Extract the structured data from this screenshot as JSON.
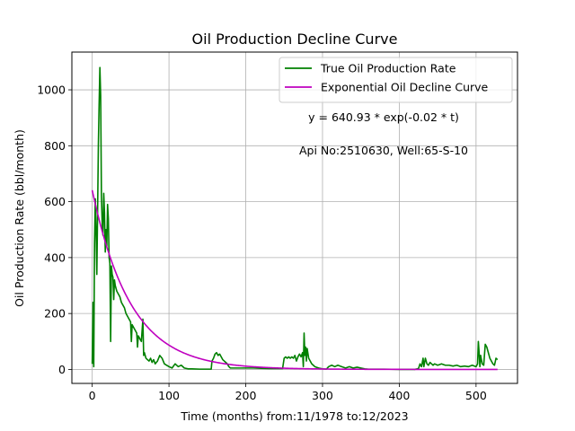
{
  "chart_data": {
    "type": "line",
    "title": "Oil Production Decline Curve",
    "xlabel": "Time (months) from:11/1978 to:12/2023",
    "ylabel": "Oil Production Rate (bbl/month)",
    "xlim": [
      -26.5,
      554
    ],
    "ylim": [
      -50,
      1135
    ],
    "xticks": [
      0,
      100,
      200,
      300,
      400,
      500
    ],
    "yticks": [
      0,
      200,
      400,
      600,
      800,
      1000
    ],
    "grid": true,
    "legend_position": "top-right",
    "annotations": [
      "y = 640.93 * exp(-0.02 * t)",
      "Api No:2510630, Well:65-S-10"
    ],
    "fit": {
      "a": 640.93,
      "b": 0.02
    },
    "series": [
      {
        "name": "True Oil Production Rate",
        "color": "#008000",
        "kind": "observed",
        "points": [
          [
            0,
            20
          ],
          [
            1,
            240
          ],
          [
            2,
            10
          ],
          [
            3,
            450
          ],
          [
            4,
            610
          ],
          [
            5,
            500
          ],
          [
            6,
            340
          ],
          [
            7,
            560
          ],
          [
            8,
            800
          ],
          [
            9,
            950
          ],
          [
            10,
            1080
          ],
          [
            11,
            980
          ],
          [
            12,
            620
          ],
          [
            13,
            520
          ],
          [
            14,
            480
          ],
          [
            15,
            630
          ],
          [
            16,
            560
          ],
          [
            17,
            420
          ],
          [
            18,
            500
          ],
          [
            19,
            440
          ],
          [
            20,
            590
          ],
          [
            21,
            540
          ],
          [
            22,
            400
          ],
          [
            23,
            380
          ],
          [
            24,
            100
          ],
          [
            25,
            370
          ],
          [
            26,
            340
          ],
          [
            27,
            330
          ],
          [
            28,
            250
          ],
          [
            29,
            320
          ],
          [
            30,
            300
          ],
          [
            32,
            280
          ],
          [
            34,
            270
          ],
          [
            36,
            260
          ],
          [
            38,
            240
          ],
          [
            40,
            230
          ],
          [
            42,
            220
          ],
          [
            44,
            200
          ],
          [
            46,
            190
          ],
          [
            48,
            180
          ],
          [
            50,
            170
          ],
          [
            51,
            100
          ],
          [
            52,
            160
          ],
          [
            54,
            150
          ],
          [
            56,
            140
          ],
          [
            58,
            130
          ],
          [
            59,
            80
          ],
          [
            60,
            120
          ],
          [
            62,
            110
          ],
          [
            64,
            100
          ],
          [
            66,
            180
          ],
          [
            67,
            50
          ],
          [
            68,
            60
          ],
          [
            70,
            40
          ],
          [
            72,
            35
          ],
          [
            74,
            30
          ],
          [
            76,
            40
          ],
          [
            78,
            25
          ],
          [
            80,
            35
          ],
          [
            82,
            20
          ],
          [
            85,
            30
          ],
          [
            88,
            50
          ],
          [
            91,
            40
          ],
          [
            94,
            20
          ],
          [
            97,
            15
          ],
          [
            100,
            10
          ],
          [
            104,
            5
          ],
          [
            108,
            20
          ],
          [
            112,
            10
          ],
          [
            116,
            15
          ],
          [
            120,
            5
          ],
          [
            125,
            2
          ],
          [
            130,
            2
          ],
          [
            140,
            1
          ],
          [
            150,
            1
          ],
          [
            155,
            1
          ],
          [
            156,
            30
          ],
          [
            158,
            40
          ],
          [
            160,
            55
          ],
          [
            162,
            60
          ],
          [
            164,
            50
          ],
          [
            166,
            55
          ],
          [
            168,
            45
          ],
          [
            170,
            35
          ],
          [
            172,
            30
          ],
          [
            174,
            25
          ],
          [
            176,
            20
          ],
          [
            178,
            10
          ],
          [
            180,
            5
          ],
          [
            185,
            5
          ],
          [
            190,
            5
          ],
          [
            200,
            5
          ],
          [
            210,
            5
          ],
          [
            220,
            4
          ],
          [
            230,
            3
          ],
          [
            240,
            3
          ],
          [
            248,
            3
          ],
          [
            250,
            40
          ],
          [
            252,
            45
          ],
          [
            254,
            40
          ],
          [
            256,
            45
          ],
          [
            258,
            40
          ],
          [
            260,
            45
          ],
          [
            262,
            40
          ],
          [
            264,
            50
          ],
          [
            266,
            30
          ],
          [
            268,
            45
          ],
          [
            270,
            55
          ],
          [
            272,
            45
          ],
          [
            274,
            60
          ],
          [
            275,
            10
          ],
          [
            276,
            130
          ],
          [
            277,
            50
          ],
          [
            278,
            80
          ],
          [
            279,
            30
          ],
          [
            280,
            75
          ],
          [
            282,
            40
          ],
          [
            284,
            30
          ],
          [
            286,
            20
          ],
          [
            288,
            15
          ],
          [
            290,
            10
          ],
          [
            295,
            5
          ],
          [
            300,
            2
          ],
          [
            305,
            1
          ],
          [
            308,
            10
          ],
          [
            312,
            15
          ],
          [
            316,
            10
          ],
          [
            320,
            15
          ],
          [
            325,
            10
          ],
          [
            330,
            5
          ],
          [
            335,
            10
          ],
          [
            340,
            5
          ],
          [
            345,
            8
          ],
          [
            350,
            5
          ],
          [
            355,
            2
          ],
          [
            360,
            1
          ],
          [
            380,
            1
          ],
          [
            400,
            0
          ],
          [
            420,
            0
          ],
          [
            425,
            3
          ],
          [
            427,
            20
          ],
          [
            429,
            10
          ],
          [
            431,
            40
          ],
          [
            432,
            10
          ],
          [
            434,
            40
          ],
          [
            436,
            20
          ],
          [
            438,
            15
          ],
          [
            440,
            25
          ],
          [
            442,
            20
          ],
          [
            444,
            15
          ],
          [
            446,
            20
          ],
          [
            450,
            15
          ],
          [
            455,
            20
          ],
          [
            460,
            15
          ],
          [
            465,
            15
          ],
          [
            470,
            12
          ],
          [
            475,
            15
          ],
          [
            480,
            10
          ],
          [
            485,
            12
          ],
          [
            490,
            10
          ],
          [
            495,
            15
          ],
          [
            500,
            10
          ],
          [
            502,
            20
          ],
          [
            503,
            100
          ],
          [
            504,
            60
          ],
          [
            505,
            10
          ],
          [
            506,
            50
          ],
          [
            508,
            20
          ],
          [
            510,
            15
          ],
          [
            512,
            90
          ],
          [
            514,
            80
          ],
          [
            516,
            60
          ],
          [
            518,
            40
          ],
          [
            520,
            30
          ],
          [
            522,
            20
          ],
          [
            524,
            15
          ],
          [
            526,
            40
          ],
          [
            528,
            35
          ]
        ]
      },
      {
        "name": "Exponential Oil Decline Curve",
        "color": "#bf00bf",
        "kind": "fit",
        "x_range": [
          0,
          528
        ]
      }
    ]
  }
}
